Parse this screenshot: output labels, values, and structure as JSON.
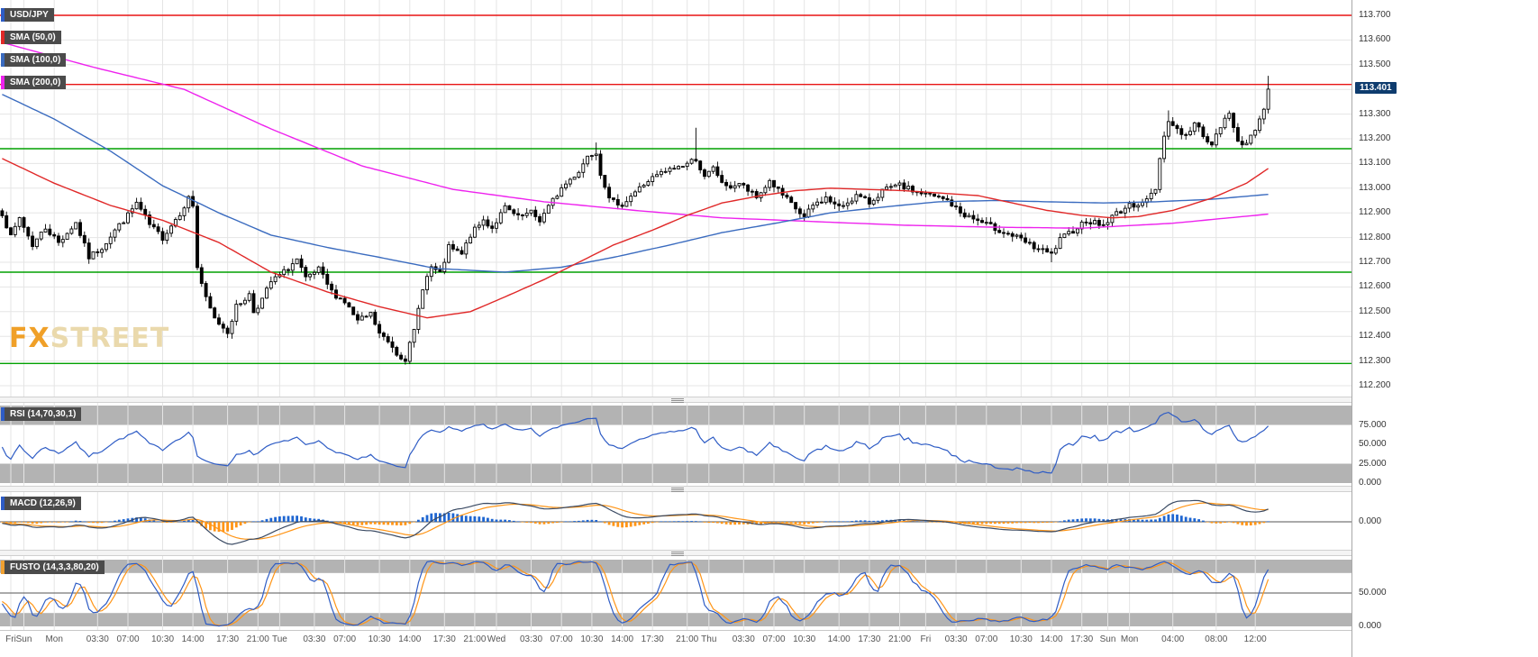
{
  "colors": {
    "grid": "#e5e5e5",
    "band": "#b3b3b3",
    "bull_candle": "#ffffff",
    "bear_candle": "#000000",
    "candle_stroke": "#000000",
    "sma50": "#e02828",
    "sma100": "#3a6bbf",
    "sma200": "#ee22ee",
    "resistance_red": "#e81414",
    "support_green": "#00a000",
    "rsi_line": "#2e5cc5",
    "macd_line": "#3a4a63",
    "macd_signal": "#ff9517",
    "macd_hist_pos": "#1f66d1",
    "macd_hist_neg": "#ff9517",
    "stoch_k": "#2e5cc5",
    "stoch_d": "#ff9517",
    "badge_bg": "#0e3c6e",
    "legend_bg": "#4b4b4b"
  },
  "main_chart": {
    "legends": [
      {
        "name": "symbol-badge",
        "label": "USD/JPY",
        "stripe": "#2e5cc5"
      },
      {
        "name": "sma50-legend",
        "label": "SMA (50,0)",
        "stripe": "#e02828"
      },
      {
        "name": "sma100-legend",
        "label": "SMA (100,0)",
        "stripe": "#3a6bbf"
      },
      {
        "name": "sma200-legend",
        "label": "SMA (200,0)",
        "stripe": "#ee22ee"
      }
    ],
    "watermark_fx": "FX",
    "watermark_street": "STREET",
    "price_badge_text": "113.401"
  },
  "panels": {
    "rsi": {
      "legend": {
        "name": "rsi-legend",
        "label": "RSI (14,70,30,1)",
        "stripe": "#2e5cc5"
      },
      "ticks": [
        {
          "v": 75,
          "label": "75.000"
        },
        {
          "v": 50,
          "label": "50.000"
        },
        {
          "v": 25,
          "label": "25.000"
        },
        {
          "v": 0,
          "label": "0.000"
        }
      ],
      "bands": [
        75,
        25
      ]
    },
    "macd": {
      "legend": {
        "name": "macd-legend",
        "label": "MACD (12,26,9)",
        "stripe": "#2e5cc5"
      },
      "ticks": [
        {
          "v": 0,
          "label": "0.000"
        }
      ]
    },
    "stoch": {
      "legend": {
        "name": "stoch-legend",
        "label": "FUSTO (14,3,3,80,20)",
        "stripe": "#f0a030"
      },
      "ticks": [
        {
          "v": 50,
          "label": "50.000"
        },
        {
          "v": 0,
          "label": "0.000"
        }
      ],
      "bands": [
        80,
        20
      ]
    }
  },
  "chart_data": {
    "type": "candlestick",
    "symbol": "USD/JPY",
    "candle_count": 293,
    "y_top": 113.7,
    "y_step": 0.1,
    "ylim": [
      112.2,
      113.7
    ],
    "y_ticks": [
      "113.700",
      "113.600",
      "113.500",
      "113.400",
      "113.300",
      "113.200",
      "113.100",
      "113.000",
      "112.900",
      "112.800",
      "112.700",
      "112.600",
      "112.500",
      "112.400",
      "112.300",
      "112.200"
    ],
    "last_close": 113.401,
    "hlines": [
      {
        "price": 113.7,
        "color": "#e81414"
      },
      {
        "price": 113.42,
        "color": "#e81414"
      },
      {
        "price": 113.16,
        "color": "#00a000"
      },
      {
        "price": 112.66,
        "color": "#00a000"
      },
      {
        "price": 112.29,
        "color": "#00a000"
      }
    ],
    "close_anchors": [
      [
        0,
        112.9
      ],
      [
        2,
        112.8
      ],
      [
        4,
        112.88
      ],
      [
        7,
        112.77
      ],
      [
        10,
        112.84
      ],
      [
        13,
        112.78
      ],
      [
        17,
        112.86
      ],
      [
        20,
        112.72
      ],
      [
        23,
        112.76
      ],
      [
        26,
        112.83
      ],
      [
        29,
        112.89
      ],
      [
        31,
        112.94
      ],
      [
        34,
        112.85
      ],
      [
        37,
        112.8
      ],
      [
        41,
        112.9
      ],
      [
        43,
        112.96
      ],
      [
        44,
        112.93
      ],
      [
        45,
        112.68
      ],
      [
        47,
        112.55
      ],
      [
        49,
        112.47
      ],
      [
        52,
        112.42
      ],
      [
        54,
        112.52
      ],
      [
        57,
        112.57
      ],
      [
        58,
        112.5
      ],
      [
        60,
        112.55
      ],
      [
        62,
        112.62
      ],
      [
        65,
        112.66
      ],
      [
        68,
        112.71
      ],
      [
        70,
        112.63
      ],
      [
        73,
        112.67
      ],
      [
        76,
        112.58
      ],
      [
        79,
        112.54
      ],
      [
        82,
        112.46
      ],
      [
        85,
        112.49
      ],
      [
        87,
        112.41
      ],
      [
        90,
        112.36
      ],
      [
        91,
        112.33
      ],
      [
        93,
        112.31
      ],
      [
        95,
        112.42
      ],
      [
        97,
        112.6
      ],
      [
        99,
        112.68
      ],
      [
        101,
        112.65
      ],
      [
        103,
        112.76
      ],
      [
        106,
        112.73
      ],
      [
        108,
        112.81
      ],
      [
        111,
        112.87
      ],
      [
        113,
        112.84
      ],
      [
        116,
        112.92
      ],
      [
        119,
        112.88
      ],
      [
        122,
        112.9
      ],
      [
        124,
        112.87
      ],
      [
        127,
        112.95
      ],
      [
        129,
        113.0
      ],
      [
        133,
        113.07
      ],
      [
        135,
        113.13
      ],
      [
        137,
        113.15
      ],
      [
        138,
        113.06
      ],
      [
        140,
        112.97
      ],
      [
        142,
        112.92
      ],
      [
        145,
        112.97
      ],
      [
        149,
        113.03
      ],
      [
        152,
        113.06
      ],
      [
        155,
        113.08
      ],
      [
        158,
        113.1
      ],
      [
        160,
        113.12
      ],
      [
        162,
        113.04
      ],
      [
        164,
        113.08
      ],
      [
        167,
        113.0
      ],
      [
        170,
        113.02
      ],
      [
        174,
        112.96
      ],
      [
        177,
        113.03
      ],
      [
        180,
        112.97
      ],
      [
        185,
        112.88
      ],
      [
        187,
        112.93
      ],
      [
        190,
        112.96
      ],
      [
        193,
        112.92
      ],
      [
        197,
        112.97
      ],
      [
        200,
        112.94
      ],
      [
        203,
        112.99
      ],
      [
        207,
        113.01
      ],
      [
        210,
        112.99
      ],
      [
        214,
        112.97
      ],
      [
        218,
        112.95
      ],
      [
        221,
        112.9
      ],
      [
        226,
        112.86
      ],
      [
        230,
        112.83
      ],
      [
        234,
        112.8
      ],
      [
        238,
        112.76
      ],
      [
        242,
        112.73
      ],
      [
        244,
        112.79
      ],
      [
        247,
        112.83
      ],
      [
        250,
        112.87
      ],
      [
        254,
        112.85
      ],
      [
        257,
        112.9
      ],
      [
        259,
        112.92
      ],
      [
        262,
        112.94
      ],
      [
        264,
        112.95
      ],
      [
        266,
        113.0
      ],
      [
        267,
        113.12
      ],
      [
        268,
        113.22
      ],
      [
        269,
        113.27
      ],
      [
        271,
        113.24
      ],
      [
        273,
        113.21
      ],
      [
        275,
        113.26
      ],
      [
        277,
        113.22
      ],
      [
        279,
        113.17
      ],
      [
        281,
        113.25
      ],
      [
        283,
        113.3
      ],
      [
        285,
        113.2
      ],
      [
        287,
        113.17
      ],
      [
        288,
        113.21
      ],
      [
        289,
        113.24
      ],
      [
        290,
        113.28
      ],
      [
        291,
        113.33
      ],
      [
        292,
        113.401
      ]
    ],
    "wick_events": [
      {
        "i": 44,
        "high": 112.99
      },
      {
        "i": 93,
        "low": 112.295
      },
      {
        "i": 137,
        "high": 113.185
      },
      {
        "i": 160,
        "high": 113.245
      },
      {
        "i": 242,
        "low": 112.7
      },
      {
        "i": 269,
        "high": 113.315
      },
      {
        "i": 292,
        "high": 113.455
      }
    ],
    "sma50_anchors": [
      [
        0,
        113.12
      ],
      [
        12,
        113.02
      ],
      [
        25,
        112.93
      ],
      [
        37,
        112.87
      ],
      [
        50,
        112.78
      ],
      [
        62,
        112.66
      ],
      [
        75,
        112.58
      ],
      [
        87,
        112.52
      ],
      [
        98,
        112.475
      ],
      [
        108,
        112.5
      ],
      [
        116,
        112.56
      ],
      [
        125,
        112.63
      ],
      [
        133,
        112.7
      ],
      [
        141,
        112.77
      ],
      [
        150,
        112.83
      ],
      [
        158,
        112.89
      ],
      [
        166,
        112.94
      ],
      [
        175,
        112.97
      ],
      [
        183,
        112.99
      ],
      [
        191,
        113.0
      ],
      [
        208,
        112.99
      ],
      [
        225,
        112.97
      ],
      [
        233,
        112.94
      ],
      [
        241,
        112.91
      ],
      [
        249,
        112.89
      ],
      [
        256,
        112.88
      ],
      [
        262,
        112.885
      ],
      [
        270,
        112.91
      ],
      [
        279,
        112.96
      ],
      [
        287,
        113.02
      ],
      [
        292,
        113.08
      ]
    ],
    "sma100_anchors": [
      [
        0,
        113.38
      ],
      [
        12,
        113.28
      ],
      [
        25,
        113.15
      ],
      [
        37,
        113.01
      ],
      [
        50,
        112.9
      ],
      [
        62,
        112.81
      ],
      [
        75,
        112.76
      ],
      [
        87,
        112.72
      ],
      [
        100,
        112.675
      ],
      [
        116,
        112.66
      ],
      [
        129,
        112.68
      ],
      [
        141,
        112.72
      ],
      [
        154,
        112.77
      ],
      [
        166,
        112.82
      ],
      [
        179,
        112.86
      ],
      [
        191,
        112.9
      ],
      [
        204,
        112.925
      ],
      [
        216,
        112.945
      ],
      [
        229,
        112.95
      ],
      [
        241,
        112.945
      ],
      [
        254,
        112.94
      ],
      [
        266,
        112.945
      ],
      [
        279,
        112.955
      ],
      [
        292,
        112.975
      ]
    ],
    "sma200_anchors": [
      [
        0,
        113.59
      ],
      [
        21,
        113.49
      ],
      [
        42,
        113.4
      ],
      [
        62,
        113.24
      ],
      [
        83,
        113.09
      ],
      [
        104,
        112.995
      ],
      [
        125,
        112.945
      ],
      [
        146,
        112.91
      ],
      [
        166,
        112.88
      ],
      [
        187,
        112.865
      ],
      [
        208,
        112.85
      ],
      [
        229,
        112.842
      ],
      [
        249,
        112.838
      ],
      [
        270,
        112.858
      ],
      [
        292,
        112.895
      ]
    ],
    "indicators": {
      "rsi_period": 14,
      "macd": [
        12,
        26,
        9
      ],
      "stoch": [
        14,
        3,
        3,
        80,
        20
      ]
    },
    "noise_seed": 7,
    "noise_amp": 0.012,
    "wick_amp": 0.022,
    "x_labels": [
      {
        "t": "Fri",
        "i": 2
      },
      {
        "t": "Sun",
        "i": 5
      },
      {
        "t": "Mon",
        "i": 12
      },
      {
        "t": "03:30",
        "i": 22
      },
      {
        "t": "07:00",
        "i": 29
      },
      {
        "t": "10:30",
        "i": 37
      },
      {
        "t": "14:00",
        "i": 44
      },
      {
        "t": "17:30",
        "i": 52
      },
      {
        "t": "21:00",
        "i": 59
      },
      {
        "t": "Tue",
        "i": 64
      },
      {
        "t": "03:30",
        "i": 72
      },
      {
        "t": "07:00",
        "i": 79
      },
      {
        "t": "10:30",
        "i": 87
      },
      {
        "t": "14:00",
        "i": 94
      },
      {
        "t": "17:30",
        "i": 102
      },
      {
        "t": "21:00",
        "i": 109
      },
      {
        "t": "Wed",
        "i": 114
      },
      {
        "t": "03:30",
        "i": 122
      },
      {
        "t": "07:00",
        "i": 129
      },
      {
        "t": "10:30",
        "i": 136
      },
      {
        "t": "14:00",
        "i": 143
      },
      {
        "t": "17:30",
        "i": 150
      },
      {
        "t": "21:00",
        "i": 158
      },
      {
        "t": "Thu",
        "i": 163
      },
      {
        "t": "03:30",
        "i": 171
      },
      {
        "t": "07:00",
        "i": 178
      },
      {
        "t": "10:30",
        "i": 185
      },
      {
        "t": "14:00",
        "i": 193
      },
      {
        "t": "17:30",
        "i": 200
      },
      {
        "t": "21:00",
        "i": 207
      },
      {
        "t": "Fri",
        "i": 213
      },
      {
        "t": "03:30",
        "i": 220
      },
      {
        "t": "07:00",
        "i": 227
      },
      {
        "t": "10:30",
        "i": 235
      },
      {
        "t": "14:00",
        "i": 242
      },
      {
        "t": "17:30",
        "i": 249
      },
      {
        "t": "Sun",
        "i": 255
      },
      {
        "t": "Mon",
        "i": 260
      },
      {
        "t": "04:00",
        "i": 270
      },
      {
        "t": "08:00",
        "i": 280
      },
      {
        "t": "12:00",
        "i": 289
      }
    ]
  }
}
